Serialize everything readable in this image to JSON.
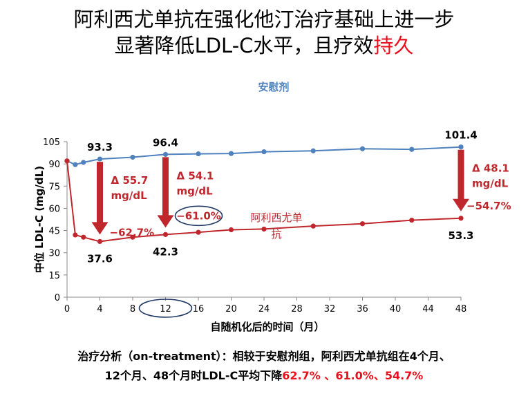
{
  "title": {
    "line1": "阿利西尤单抗在强化他汀治疗基础上进一步",
    "line2_prefix": "显著降低LDL-C水平，且疗效",
    "line2_highlight": "持久"
  },
  "chart_data": {
    "type": "line",
    "xlabel": "自随机化后的时间（月）",
    "ylabel": "中位 LDL-C (mg/dL)",
    "xlim": [
      0,
      48
    ],
    "ylim": [
      0,
      105
    ],
    "x_ticks": [
      0,
      4,
      8,
      12,
      16,
      20,
      24,
      28,
      32,
      36,
      40,
      44,
      48
    ],
    "y_ticks": [
      0,
      15,
      30,
      45,
      60,
      75,
      90,
      105
    ],
    "grid": false,
    "series": [
      {
        "name": "安慰剂",
        "color": "#4e81bd",
        "x": [
          0,
          1,
          2,
          4,
          8,
          12,
          16,
          20,
          24,
          30,
          36,
          42,
          48
        ],
        "y": [
          92,
          89.5,
          91,
          93.3,
          94.5,
          96.4,
          96.8,
          97,
          98.2,
          98.8,
          100.2,
          99.8,
          101.4
        ]
      },
      {
        "name": "阿利西尤单抗",
        "color": "#c0272d",
        "x": [
          0,
          1,
          2,
          4,
          8,
          12,
          16,
          20,
          24,
          30,
          36,
          42,
          48
        ],
        "y": [
          92,
          42,
          40.5,
          37.6,
          40.5,
          42.3,
          43.8,
          45.5,
          46,
          48,
          49.6,
          52,
          53.3
        ]
      }
    ],
    "value_labels": [
      {
        "x": 4,
        "text": "93.3",
        "series": 0
      },
      {
        "x": 12,
        "text": "96.4",
        "series": 0
      },
      {
        "x": 48,
        "text": "101.4",
        "series": 0
      },
      {
        "x": 4,
        "text": "37.6",
        "series": 1
      },
      {
        "x": 12,
        "text": "42.3",
        "series": 1
      },
      {
        "x": 48,
        "text": "53.3",
        "series": 1
      }
    ],
    "arrows": [
      {
        "x": 4,
        "delta_line1": "Δ 55.7",
        "delta_line2": "mg/dL",
        "percent": "−62.7%"
      },
      {
        "x": 12,
        "delta_line1": "Δ 54.1",
        "delta_line2": "mg/dL",
        "percent": "−61.0%"
      },
      {
        "x": 48,
        "delta_line1": "Δ 48.1",
        "delta_line2": "mg/dL",
        "percent": "−54.7%"
      }
    ],
    "series_labels": {
      "placebo": "安慰剂",
      "drug_line1": "阿利西尤单",
      "drug_line2": "抗"
    },
    "colors": {
      "placebo": "#4e81bd",
      "drug": "#c0272d",
      "arrow": "#c0272d",
      "ellipse": "#1f3864"
    },
    "highlighted_x_tick": 12
  },
  "footnote": {
    "line1": "治疗分析（on-treatment）：相较于安慰剂组，阿利西尤单抗组在4个月、",
    "line2_prefix": "12个月、48个月时LDL-C平均下降",
    "line2_highlight": "62.7% 、61.0%、54.7%"
  }
}
